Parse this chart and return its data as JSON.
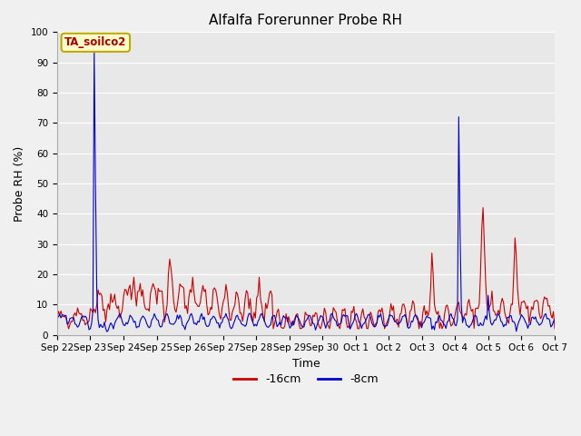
{
  "title": "Alfalfa Forerunner Probe RH",
  "xlabel": "Time",
  "ylabel": "Probe RH (%)",
  "ylim": [
    0,
    100
  ],
  "fig_bg_color": "#f0f0f0",
  "plot_bg_color": "#e8e8e8",
  "red_color": "#cc0000",
  "blue_color": "#0000cc",
  "annotation_text": "TA_soilco2",
  "annotation_bg": "#ffffcc",
  "annotation_border": "#bbaa00",
  "legend_labels": [
    "-16cm",
    "-8cm"
  ],
  "xtick_labels": [
    "Sep 22",
    "Sep 23",
    "Sep 24",
    "Sep 25",
    "Sep 26",
    "Sep 27",
    "Sep 28",
    "Sep 29",
    "Sep 30",
    "Oct 1",
    "Oct 2",
    "Oct 3",
    "Oct 4",
    "Oct 5",
    "Oct 6",
    "Oct 7"
  ],
  "ytick_labels": [
    0,
    10,
    20,
    30,
    40,
    50,
    60,
    70,
    80,
    90,
    100
  ],
  "grid_color": "#ffffff",
  "title_fontsize": 11,
  "label_fontsize": 9,
  "tick_fontsize": 7.5
}
